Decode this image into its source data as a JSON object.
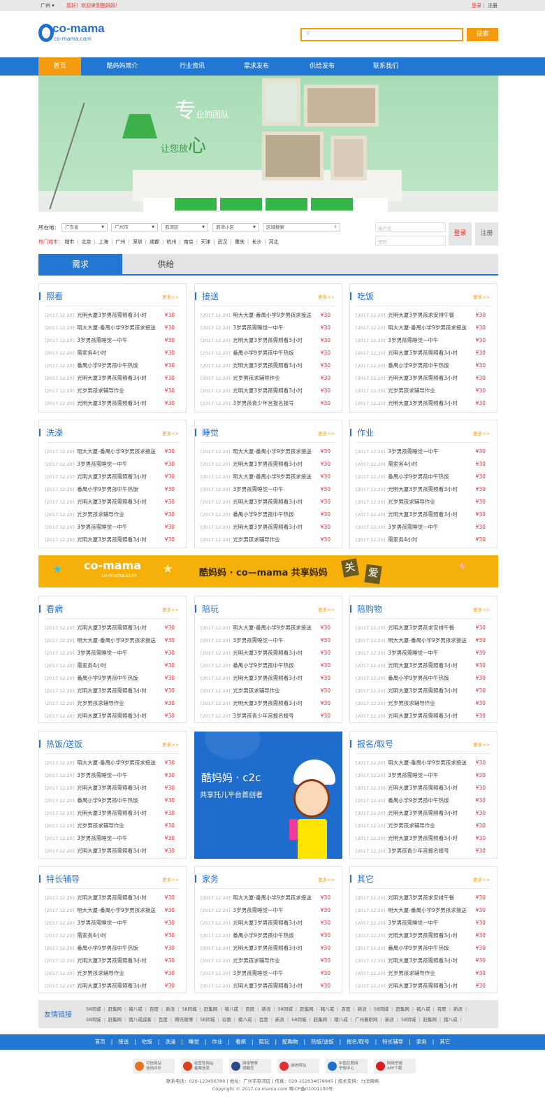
{
  "topbar": {
    "city": "广州",
    "welcome": "您好！欢迎来到酷妈妈！",
    "login": "登录",
    "register": "注册"
  },
  "header": {
    "logo_text": "co-mama",
    "logo_sub": "co-mama.com",
    "search_placeholder": "",
    "search_button": "搜索"
  },
  "nav": [
    "首页",
    "酷妈妈简介",
    "行业资讯",
    "需求发布",
    "供给发布",
    "联系我们"
  ],
  "hero": {
    "line1_big": "专",
    "line1": "业的团队",
    "line2": "让您放",
    "line2_big": "心"
  },
  "filter": {
    "location_label": "所在地：",
    "province": "广东省",
    "city": "广州市",
    "district": "荔湾区",
    "community": "荔湾小区",
    "area_search_placeholder": "区域搜索",
    "hot_label": "热门城市：",
    "hot_cities": [
      "城市",
      "北京",
      "上海",
      "广州",
      "深圳",
      "成都",
      "杭州",
      "南京",
      "天津",
      "武汉",
      "重庆",
      "长沙",
      "河北"
    ]
  },
  "login": {
    "user_placeholder": "账户名",
    "pass_placeholder": "密码",
    "login_button": "登录",
    "register_button": "注册"
  },
  "tabs": [
    "需求",
    "供给"
  ],
  "common": {
    "date": "[2017.12.20]",
    "price": "¥30",
    "more": "更多>>"
  },
  "panels": [
    {
      "title": "照看",
      "items": [
        "光明大厦3岁男孩需照看3小时",
        "明大大厦-番禺小学9岁男孩求接送",
        "3岁男孩需睡觉一中午",
        "需家务4小时",
        "番禺小学9岁男孩中午热饭",
        "光明大厦3岁男孩需照看3小时",
        "光岁男孩求辅导作业",
        "光明大厦3岁男孩需照看3小时"
      ]
    },
    {
      "title": "接送",
      "items": [
        "明大大厦-番禺小学9岁男孩求接送",
        "3岁男孩需睡觉一中午",
        "光明大厦3岁男孩需照看3小时",
        "番禺小学9岁男孩中午热饭",
        "光明大厦3岁男孩需照看3小时",
        "光岁男孩求辅导作业",
        "光明大厦3岁男孩需照看3小时",
        "3岁男孩青少年宫报名报号"
      ]
    },
    {
      "title": "吃饭",
      "items": [
        "光明大厦3岁男孩求安排午餐",
        "明大大厦-番禺小学9岁男孩求接送",
        "3岁男孩需睡觉一中午",
        "光明大厦3岁男孩需照看3小时",
        "番禺小学9岁男孩中午热饭",
        "光明大厦3岁男孩需照看3小时",
        "光岁男孩求辅导作业",
        "光明大厦3岁男孩需照看3小时"
      ]
    },
    {
      "title": "洗澡",
      "items": [
        "明大大厦-番禺小学9岁男孩求接送",
        "3岁男孩需睡觉一中午",
        "光明大厦3岁男孩需照看3小时",
        "番禺小学9岁男孩中午热饭",
        "光明大厦3岁男孩需照看3小时",
        "光岁男孩求辅导作业",
        "3岁男孩需睡觉一中午",
        "光明大厦3岁男孩需照看3小时"
      ]
    },
    {
      "title": "睡觉",
      "items": [
        "明大大厦-番禺小学9岁男孩求接送",
        "光明大厦3岁男孩需照看3小时",
        "明大大厦-番禺小学9岁男孩求接送",
        "3岁男孩需睡觉一中午",
        "光明大厦3岁男孩需照看3小时",
        "番禺小学9岁男孩中午热饭",
        "光明大厦3岁男孩需照看3小时",
        "光岁男孩求辅导作业"
      ]
    },
    {
      "title": "作业",
      "items": [
        "3岁男孩需睡觉一中午",
        "需家务4小时",
        "番禺小学9岁男孩中午热饭",
        "光明大厦3岁男孩需照看3小时",
        "光岁男孩求辅导作业",
        "光明大厦3岁男孩需照看3小时",
        "3岁男孩需睡觉一中午",
        "需家务4小时"
      ]
    },
    {
      "title": "看病",
      "items": [
        "光明大厦3岁男孩需照看3小时",
        "明大大厦-番禺小学9岁男孩求接送",
        "3岁男孩需睡觉一中午",
        "需家务4小时",
        "番禺小学9岁男孩中午热饭",
        "光明大厦3岁男孩需照看3小时",
        "光岁男孩求辅导作业",
        "光明大厦3岁男孩需照看3小时"
      ]
    },
    {
      "title": "陪玩",
      "items": [
        "明大大厦-番禺小学9岁男孩求接送",
        "3岁男孩需睡觉一中午",
        "光明大厦3岁男孩需照看3小时",
        "番禺小学9岁男孩中午热饭",
        "光明大厦3岁男孩需照看3小时",
        "光岁男孩求辅导作业",
        "光明大厦3岁男孩需照看3小时",
        "3岁男孩青少年宫报名报号"
      ]
    },
    {
      "title": "陪购物",
      "items": [
        "光明大厦3岁男孩求安排午餐",
        "明大大厦-番禺小学9岁男孩求接送",
        "3岁男孩需睡觉一中午",
        "光明大厦3岁男孩需照看3小时",
        "番禺小学9岁男孩中午热饭",
        "光明大厦3岁男孩需照看3小时",
        "光岁男孩求辅导作业",
        "光明大厦3岁男孩需照看3小时"
      ]
    },
    {
      "title": "热饭/送饭",
      "items": [
        "明大大厦-番禺小学9岁男孩求接送",
        "3岁男孩需睡觉一中午",
        "光明大厦3岁男孩需照看3小时",
        "番禺小学9岁男孩中午热饭",
        "光明大厦3岁男孩需照看3小时",
        "光岁男孩求辅导作业",
        "3岁男孩需睡觉一中午",
        "光明大厦3岁男孩需照看3小时"
      ]
    },
    {
      "title": "报名/取号",
      "items": [
        "明大大厦-番禺小学9岁男孩求接送",
        "3岁男孩需睡觉一中午",
        "光明大厦3岁男孩需照看3小时",
        "番禺小学9岁男孩中午热饭",
        "光明大厦3岁男孩需照看3小时",
        "光岁男孩求辅导作业",
        "光明大厦3岁男孩需照看3小时",
        "3岁男孩青少年宫报名报号"
      ]
    },
    {
      "title": "特长辅导",
      "items": [
        "光明大厦3岁男孩需照看3小时",
        "明大大厦-番禺小学9岁男孩求接送",
        "3岁男孩需睡觉一中午",
        "需家务4小时",
        "番禺小学9岁男孩中午热饭",
        "光明大厦3岁男孩需照看3小时",
        "光岁男孩求辅导作业",
        "光明大厦3岁男孩需照看3小时"
      ]
    },
    {
      "title": "家务",
      "items": [
        "明大大厦-番禺小学9岁男孩求接送",
        "3岁男孩需睡觉一中午",
        "光明大厦3岁男孩需照看3小时",
        "番禺小学9岁男孩中午热饭",
        "光明大厦3岁男孩需照看3小时",
        "光岁男孩求辅导作业",
        "3岁男孩需睡觉一中午",
        "光明大厦3岁男孩需照看3小时"
      ]
    },
    {
      "title": "其它",
      "items": [
        "光明大厦3岁男孩求安排午餐",
        "明大大厦-番禺小学9岁男孩求接送",
        "3岁男孩需睡觉一中午",
        "光明大厦3岁男孩需照看3小时",
        "番禺小学9岁男孩中午热饭",
        "光明大厦3岁男孩需照看3小时",
        "光岁男孩求辅导作业",
        "光明大厦3岁男孩需照看3小时"
      ]
    }
  ],
  "banner": {
    "logo": "co-mama",
    "logo_sub": "co-mama.com",
    "slogan": "酷妈妈 · co—mama 共享妈妈",
    "tag1": "关",
    "tag2": "爱"
  },
  "promo": {
    "line1": "酷妈妈 · c2c",
    "line2": "共享托儿平台首创者"
  },
  "friend_links": {
    "label": "友情链接",
    "row1": [
      "58同城",
      "赶集网",
      "猪八戒",
      "百度",
      "新浪",
      "58同城",
      "赶集网",
      "猪八戒",
      "百度",
      "新浪",
      "58同城",
      "赶集网",
      "猪八戒",
      "百度",
      "新浪",
      "58同城",
      "赶集网",
      "猪八戒",
      "百度",
      "新浪"
    ],
    "row2": [
      "58同城",
      "赶集网",
      "猪八戒威客",
      "百度",
      "腾讯微博",
      "58同城",
      "谷歌",
      "猪八戒",
      "百度",
      "新浪",
      "58同城",
      "赶集网",
      "猪八戒",
      "广州兼职网",
      "新浪",
      "58同城",
      "赶集网",
      "猪八戒"
    ]
  },
  "footer_nav": [
    "首页",
    "接送",
    "吃饭",
    "洗澡",
    "睡觉",
    "作业",
    "看病",
    "陪玩",
    "配购物",
    "热饭/送饭",
    "报名/取号",
    "特长辅导",
    "家务",
    "其它"
  ],
  "badges": [
    {
      "l1": "可信网站",
      "l2": "信用评价",
      "color": "#e8731e"
    },
    {
      "l1": "经营性网站",
      "l2": "备案信息",
      "color": "#d9401e"
    },
    {
      "l1": "网络警察",
      "l2": "提醒您",
      "color": "#2a4a8a"
    },
    {
      "l1": "诚信网站",
      "l2": "",
      "color": "#e03030"
    },
    {
      "l1": "中国互联网",
      "l2": "举报中心",
      "color": "#1e6fd0"
    },
    {
      "l1": "网络举报",
      "l2": "APP下载",
      "color": "#d82020"
    }
  ],
  "footer": {
    "contact": "联系电话：020-123456789  |  地址：广州市荔湾区  |  传真：020-152634678945  |  技术支持：力洋网络",
    "copyright": "Copyright © 2017  co-mama.com 粤ICP备01001100号"
  },
  "colors": {
    "blue": "#2277d2",
    "orange": "#f39c12",
    "red": "#e03030",
    "banner": "#f5b10a"
  }
}
